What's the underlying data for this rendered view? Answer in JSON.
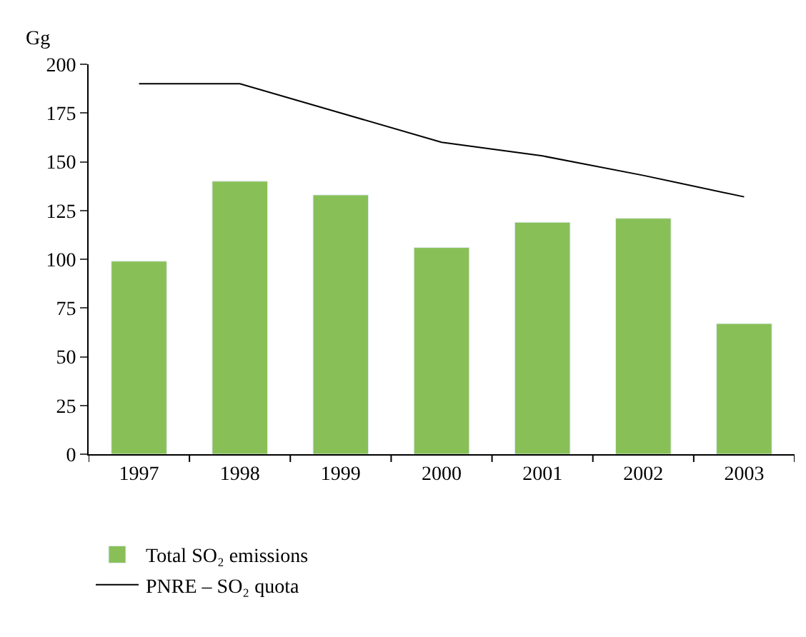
{
  "chart_data": {
    "type": "bar",
    "ylabel": "Gg",
    "categories": [
      "1997",
      "1998",
      "1999",
      "2000",
      "2001",
      "2002",
      "2003"
    ],
    "series": [
      {
        "name": "Total SO₂ emissions",
        "color": "#88c057",
        "values": [
          99,
          140,
          133,
          106,
          119,
          121,
          67
        ]
      },
      {
        "name": "PNRE – SO₂ quota",
        "type": "line",
        "color": "#000000",
        "values": [
          190,
          190,
          175,
          160,
          153,
          143,
          132
        ]
      }
    ],
    "ylim": [
      0,
      200
    ],
    "yticks": [
      0,
      25,
      50,
      75,
      100,
      125,
      150,
      175,
      200
    ],
    "legend": "bottom",
    "marker": "none",
    "line_style": "solid"
  }
}
